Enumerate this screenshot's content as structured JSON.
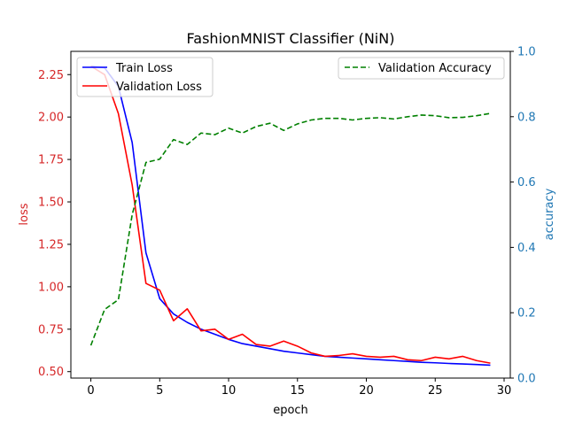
{
  "chart_data": {
    "type": "line",
    "title": "FashionMNIST Classifier (NiN)",
    "xlabel": "epoch",
    "ylabel_left": "loss",
    "ylabel_right": "accuracy",
    "xlim": [
      -1.45,
      30.45
    ],
    "ylim_left": [
      0.462,
      2.387
    ],
    "ylim_right": [
      0.0,
      1.0
    ],
    "x_ticks": [
      "0",
      "5",
      "10",
      "15",
      "20",
      "25",
      "30"
    ],
    "x_tick_values": [
      0,
      5,
      10,
      15,
      20,
      25,
      30
    ],
    "y_left_ticks": [
      "0.50",
      "0.75",
      "1.00",
      "1.25",
      "1.50",
      "1.75",
      "2.00",
      "2.25"
    ],
    "y_left_tick_values": [
      0.5,
      0.75,
      1.0,
      1.25,
      1.5,
      1.75,
      2.0,
      2.25
    ],
    "y_right_ticks": [
      "0.0",
      "0.2",
      "0.4",
      "0.6",
      "0.8",
      "1.0"
    ],
    "y_right_tick_values": [
      0.0,
      0.2,
      0.4,
      0.6,
      0.8,
      1.0
    ],
    "left_axis_color": "#d62728",
    "right_axis_color": "#1f77b4",
    "x": [
      0,
      1,
      2,
      3,
      4,
      5,
      6,
      7,
      8,
      9,
      10,
      11,
      12,
      13,
      14,
      15,
      16,
      17,
      18,
      19,
      20,
      21,
      22,
      23,
      24,
      25,
      26,
      27,
      28,
      29
    ],
    "series": [
      {
        "name": "Train Loss",
        "axis": "left",
        "color": "#0000ff",
        "dash": "solid",
        "values": [
          2.3,
          2.29,
          2.18,
          1.85,
          1.2,
          0.93,
          0.84,
          0.79,
          0.75,
          0.72,
          0.69,
          0.665,
          0.65,
          0.635,
          0.62,
          0.61,
          0.6,
          0.59,
          0.585,
          0.58,
          0.575,
          0.57,
          0.565,
          0.56,
          0.555,
          0.552,
          0.548,
          0.545,
          0.542,
          0.538
        ]
      },
      {
        "name": "Validation Loss",
        "axis": "left",
        "color": "#ff0000",
        "dash": "solid",
        "values": [
          2.3,
          2.25,
          2.02,
          1.6,
          1.02,
          0.98,
          0.8,
          0.87,
          0.74,
          0.75,
          0.69,
          0.72,
          0.66,
          0.65,
          0.68,
          0.65,
          0.61,
          0.59,
          0.595,
          0.605,
          0.59,
          0.585,
          0.59,
          0.57,
          0.565,
          0.585,
          0.575,
          0.59,
          0.565,
          0.55
        ]
      },
      {
        "name": "Validation Accuracy",
        "axis": "right",
        "color": "#008000",
        "dash": "dashed",
        "values": [
          0.1,
          0.21,
          0.24,
          0.5,
          0.66,
          0.67,
          0.73,
          0.715,
          0.75,
          0.745,
          0.765,
          0.75,
          0.77,
          0.78,
          0.758,
          0.778,
          0.79,
          0.795,
          0.795,
          0.79,
          0.795,
          0.797,
          0.793,
          0.8,
          0.805,
          0.803,
          0.797,
          0.798,
          0.803,
          0.81
        ]
      }
    ],
    "legend_left_position": "upper-left",
    "legend_right_position": "upper-right",
    "grid": false
  }
}
